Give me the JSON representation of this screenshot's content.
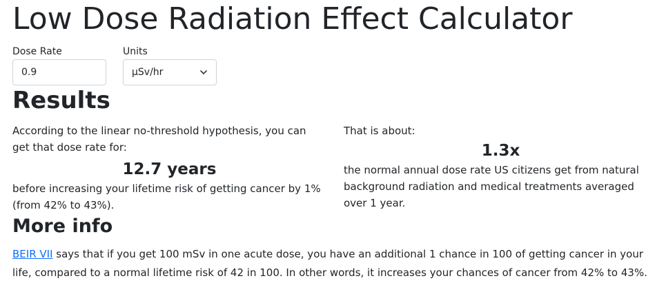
{
  "title": "Low Dose Radiation Effect Calculator",
  "form": {
    "dose_rate_label": "Dose Rate",
    "dose_rate_value": "0.9",
    "units_label": "Units",
    "units_selected": "μSv/hr"
  },
  "results": {
    "heading": "Results",
    "left_intro": "According to the linear no-threshold hypothesis, you can get that dose rate for:",
    "years_value": "12.7 years",
    "left_outro": "before increasing your lifetime risk of getting cancer by 1% (from 42% to 43%).",
    "right_intro": "That is about:",
    "multiplier_value": "1.3x",
    "right_outro": "the normal annual dose rate US citizens get from natural background radiation and medical treatments averaged over 1 year."
  },
  "more_info": {
    "heading": "More info",
    "link_text": "BEIR VII",
    "text": " says that if you get 100 mSv in one acute dose, you have an additional 1 chance in 100 of getting cancer in your life, compared to a normal lifetime risk of 42 in 100. In other words, it increases your chances of cancer from 42% to 43%."
  },
  "icons": {
    "units_dropdown": "chevron-down-icon"
  },
  "colors": {
    "link": "#0d6efd",
    "text": "#212529",
    "border": "#ced4da"
  }
}
